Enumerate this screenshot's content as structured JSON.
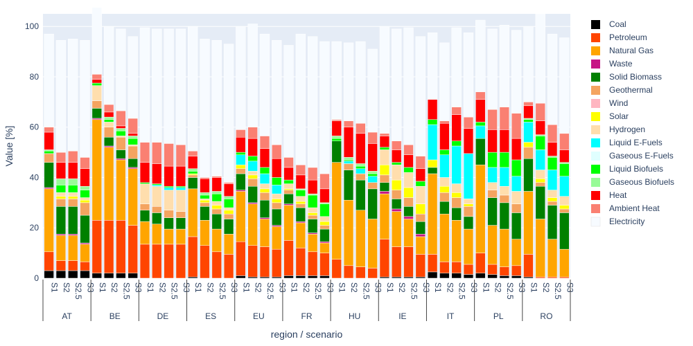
{
  "chart_data": {
    "type": "bar",
    "stacked": true,
    "ylabel": "Value [%]",
    "xlabel": "region / scenario",
    "ylim": [
      0,
      100
    ],
    "yticks": [
      0,
      20,
      40,
      60,
      80,
      100
    ],
    "grid": true,
    "legend_position": "right",
    "scenarios": [
      "S1",
      "S2",
      "S2.5",
      "S3"
    ],
    "regions": [
      {
        "name": "AT",
        "scenarios": [
          "S1",
          "S2",
          "S2.5",
          "S3"
        ]
      },
      {
        "name": "BE",
        "scenarios": [
          "S1",
          "S2",
          "S2.5",
          "S3"
        ]
      },
      {
        "name": "DE",
        "scenarios": [
          "S1",
          "S2",
          "S2.5",
          "S3"
        ]
      },
      {
        "name": "ES",
        "scenarios": [
          "S1",
          "S2",
          "S2.5",
          "S3"
        ]
      },
      {
        "name": "EU",
        "scenarios": [
          "S1",
          "S2",
          "S2.5",
          "S3"
        ]
      },
      {
        "name": "FR",
        "scenarios": [
          "S1",
          "S2",
          "S2.5",
          "S3"
        ]
      },
      {
        "name": "HU",
        "scenarios": [
          "S1",
          "S2",
          "S2.5",
          "S3"
        ]
      },
      {
        "name": "IE",
        "scenarios": [
          "S1",
          "S2",
          "S2.5",
          "S3"
        ]
      },
      {
        "name": "IT",
        "scenarios": [
          "S1",
          "S2",
          "S2.5",
          "S3"
        ]
      },
      {
        "name": "PL",
        "scenarios": [
          "S1",
          "S2",
          "S2.5",
          "S3"
        ]
      },
      {
        "name": "RO",
        "scenarios": [
          "S1",
          "S2",
          "S2.5",
          "S3"
        ]
      }
    ],
    "series": [
      {
        "name": "Coal",
        "color": "#000000",
        "values": [
          3,
          3,
          3,
          3,
          2,
          2,
          2,
          2,
          0,
          0,
          0,
          0,
          0.5,
          0,
          0,
          0,
          1,
          0.5,
          0.5,
          0.5,
          1,
          1,
          1,
          1,
          0,
          0,
          0,
          0,
          0.5,
          0.5,
          0.5,
          0.5,
          2.5,
          2,
          2,
          1.5,
          2,
          1.5,
          1,
          1,
          0.5,
          0,
          0,
          0
        ]
      },
      {
        "name": "Petroleum",
        "color": "#ff4500",
        "values": [
          7.5,
          4,
          4,
          3.5,
          21,
          21,
          21,
          19,
          13.5,
          13.5,
          13.5,
          13.5,
          16,
          13,
          10.5,
          9.5,
          13.5,
          12.5,
          12,
          11,
          14,
          11,
          9.5,
          9,
          7.5,
          5,
          4.5,
          4,
          15,
          12,
          12,
          9,
          7,
          4.5,
          4.5,
          4,
          8,
          4,
          3.5,
          4,
          9,
          0.5,
          0.5,
          0.5
        ]
      },
      {
        "name": "Natural Gas",
        "color": "#ffa500",
        "values": [
          25,
          10,
          10,
          7,
          40,
          29,
          24,
          22.5,
          9,
          8,
          6,
          6,
          19,
          10,
          9,
          8,
          20,
          16.5,
          11,
          9,
          14,
          10,
          7,
          4,
          38.5,
          26,
          22.5,
          19.5,
          18,
          14,
          11,
          7,
          32,
          19,
          16.5,
          14,
          35,
          15.5,
          15,
          10.5,
          25,
          23,
          15,
          11
        ]
      },
      {
        "name": "Waste",
        "color": "#c71585",
        "values": [
          0.5,
          0.5,
          0.5,
          0.5,
          0.5,
          0.5,
          0.5,
          0.5,
          0,
          0,
          0,
          0,
          0,
          0,
          0,
          0,
          0.5,
          0.5,
          0.5,
          0.5,
          0.5,
          0.5,
          0.5,
          0.5,
          0,
          0,
          0,
          0,
          1,
          1,
          1,
          1,
          0,
          0,
          0,
          0,
          0,
          0,
          0,
          0,
          0,
          0,
          0,
          0
        ]
      },
      {
        "name": "Solid Biomass",
        "color": "#008000",
        "values": [
          10,
          11,
          11,
          11,
          4,
          3.5,
          3.5,
          3.5,
          4.5,
          4.5,
          4.5,
          4.5,
          4.5,
          5.5,
          6,
          6,
          6.5,
          6.5,
          7,
          6.5,
          4,
          5.5,
          5.5,
          5,
          8.5,
          12,
          12,
          12,
          3.5,
          4,
          4,
          5,
          2.5,
          5,
          5,
          5,
          10.5,
          11,
          10.5,
          10.5,
          13,
          13,
          13.5,
          14.5
        ]
      },
      {
        "name": "Geothermal",
        "color": "#f4a460",
        "values": [
          3.5,
          3,
          3,
          5,
          3,
          4,
          5,
          5,
          2.5,
          2.5,
          3,
          2.5,
          1,
          1.5,
          2,
          2,
          2,
          3,
          3,
          2.5,
          1.5,
          1.5,
          1.5,
          1.5,
          0,
          2.5,
          2.5,
          2.5,
          3,
          3.5,
          3.5,
          3,
          0,
          3.5,
          4,
          4,
          0,
          3,
          3,
          3.5,
          4.5,
          1.5,
          1.5,
          1.5
        ]
      },
      {
        "name": "Wind",
        "color": "#ffb6c1",
        "values": [
          0,
          0,
          0,
          0,
          0,
          0,
          0,
          0,
          0,
          0,
          0,
          0,
          0,
          0,
          0,
          0,
          0,
          0,
          0,
          0,
          0,
          0,
          0,
          0,
          0,
          0,
          0,
          0,
          0,
          0,
          0,
          0,
          0,
          0,
          0,
          0,
          0,
          0,
          0,
          0,
          0,
          0,
          0,
          0
        ]
      },
      {
        "name": "Solar",
        "color": "#ffff00",
        "values": [
          0,
          1,
          1,
          1,
          0,
          0,
          0,
          0,
          0,
          0,
          0,
          0,
          0.5,
          1,
          1.5,
          1.5,
          1.5,
          1.5,
          1.5,
          1.5,
          0.5,
          1,
          1,
          1.5,
          0,
          0,
          0,
          0,
          4,
          4,
          4,
          4,
          3,
          2.5,
          2,
          1,
          0,
          0,
          0,
          0,
          2,
          1.5,
          1.5,
          1.5
        ]
      },
      {
        "name": "Hydrogen",
        "color": "#ffdead",
        "values": [
          0,
          1.5,
          1.5,
          1,
          6,
          2,
          0.5,
          0.5,
          8,
          8,
          8,
          8.5,
          0,
          0.5,
          1.5,
          1,
          0,
          1.5,
          2,
          2,
          2,
          2,
          2,
          2,
          0,
          0,
          0,
          0,
          6,
          6,
          6,
          7,
          0,
          3.5,
          3.5,
          2,
          0,
          3,
          3.5,
          5,
          0,
          3.5,
          3,
          3.5
        ]
      },
      {
        "name": "Liquid E-Fuels",
        "color": "#00ffff",
        "values": [
          0,
          0,
          0,
          0,
          0,
          0,
          0,
          0,
          0,
          0.5,
          1,
          1,
          0,
          0,
          0,
          0,
          4,
          4,
          4,
          3.5,
          0,
          0,
          0,
          0,
          0,
          1,
          2,
          2.5,
          0,
          0,
          0,
          0,
          14,
          9,
          15,
          18,
          5,
          6,
          7.5,
          6,
          8,
          8,
          8,
          8
        ]
      },
      {
        "name": "Gaseous E-Fuels",
        "color": "#e0ffff",
        "values": [
          0,
          0,
          0,
          0,
          0,
          0,
          0,
          0,
          0,
          0,
          0,
          0,
          0,
          0,
          0,
          0,
          0,
          0,
          0,
          0,
          0,
          0,
          0,
          0,
          0,
          0,
          0,
          0,
          0,
          0,
          0,
          0,
          0,
          0,
          0,
          0,
          0,
          0,
          0,
          0,
          0,
          0,
          0,
          0
        ]
      },
      {
        "name": "Liquid Biofuels",
        "color": "#00ff00",
        "values": [
          1,
          3,
          3,
          3,
          1,
          1,
          2,
          2.5,
          0.5,
          0.5,
          0.5,
          0.5,
          1,
          1.5,
          3,
          3.5,
          1,
          2,
          2.5,
          3,
          1.5,
          2.5,
          5,
          5,
          1,
          0.5,
          1,
          1,
          1,
          1,
          2,
          2,
          2,
          2,
          2,
          0,
          1.5,
          6,
          6,
          6.5,
          1,
          5.5,
          5,
          5
        ]
      },
      {
        "name": "Gaseous Biofuels",
        "color": "#98fb98",
        "values": [
          0.5,
          2.5,
          2.5,
          1.5,
          0,
          1,
          1,
          1,
          0,
          0,
          0,
          0,
          1,
          1,
          1,
          1,
          0,
          0,
          0,
          0,
          0,
          0.5,
          0.5,
          0.5,
          1,
          1,
          1,
          1,
          0,
          0,
          0,
          0,
          0,
          0,
          0,
          0,
          0,
          0,
          0,
          0,
          0.5,
          0.5,
          0.5,
          0.5
        ]
      },
      {
        "name": "Heat",
        "color": "#ff0000",
        "values": [
          7,
          6.5,
          6.5,
          7,
          1.5,
          2,
          1,
          1,
          8,
          8,
          8,
          8,
          5,
          5.5,
          5.5,
          5,
          6,
          7,
          7.5,
          7.5,
          5,
          5.5,
          5.5,
          5.5,
          6,
          12,
          12,
          11,
          4.5,
          5,
          5,
          5,
          8,
          10.5,
          10.5,
          10,
          9,
          9,
          9,
          8.5,
          5,
          5.5,
          5.5,
          5
        ]
      },
      {
        "name": "Ambient Heat",
        "color": "#fa8072",
        "values": [
          2,
          4,
          4.5,
          4.5,
          2,
          3,
          6,
          6,
          8,
          8.5,
          9,
          8.5,
          2,
          0.5,
          0.5,
          0.5,
          3,
          4.5,
          5,
          5.5,
          4,
          4,
          5,
          6,
          0.5,
          2.5,
          4,
          4.5,
          1,
          3.5,
          4,
          5,
          0,
          1,
          3,
          4.5,
          3,
          8,
          9,
          10,
          1.5,
          7,
          7,
          6.5
        ]
      },
      {
        "name": "Electricity",
        "color": "#f7fbff",
        "values": [
          37,
          44.5,
          44.5,
          46.5,
          26.5,
          31,
          32.5,
          32.5,
          45.5,
          45,
          45.5,
          46,
          49.5,
          55,
          54,
          55,
          41,
          41,
          40.5,
          41.5,
          44.5,
          52,
          52,
          52.5,
          31,
          31,
          32.5,
          33,
          42.5,
          44.5,
          46.5,
          47.5,
          26.5,
          31,
          31.5,
          33.5,
          28.5,
          32,
          32.5,
          33,
          30,
          35.5,
          36,
          38
        ]
      }
    ],
    "category_labels": [
      "S1",
      "S2",
      "S2.5",
      "S3",
      "S1",
      "S2",
      "S2.5",
      "S3",
      "S1",
      "S2",
      "S2.5",
      "S3",
      "S1",
      "S2",
      "S2.5",
      "S3",
      "S1",
      "S2",
      "S2.5",
      "S3",
      "S1",
      "S2",
      "S2.5",
      "S3",
      "S1",
      "S2",
      "S2.5",
      "S3",
      "S1",
      "S2",
      "S2.5",
      "S3",
      "S1",
      "S2",
      "S2.5",
      "S3",
      "S1",
      "S2",
      "S2.5",
      "S3",
      "S1",
      "S2",
      "S2.5",
      "S3"
    ]
  },
  "style": {
    "plot_bg": "#e5ecf6",
    "grid_color": "#ffffff",
    "text_color": "#2a3f5f",
    "axis_line_color": "#444444"
  }
}
